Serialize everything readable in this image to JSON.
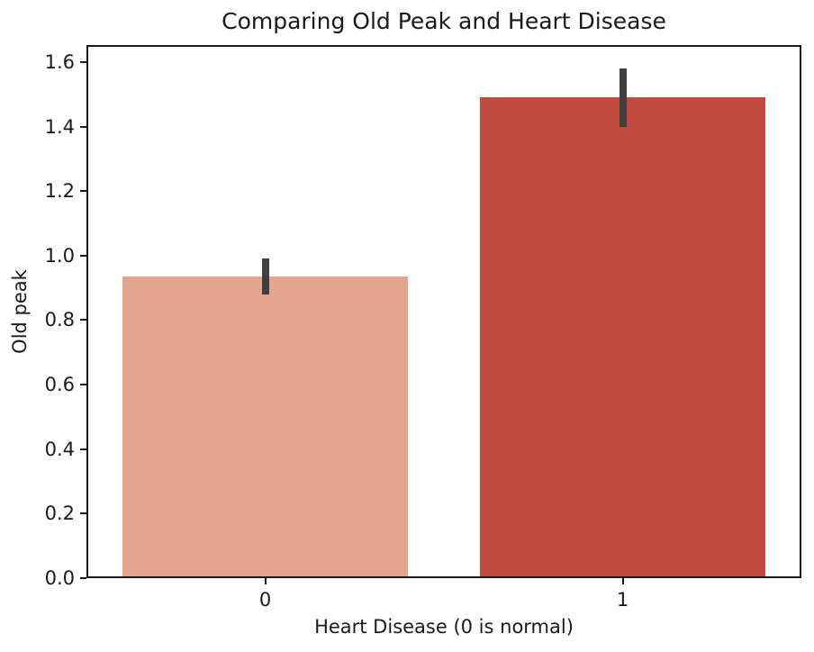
{
  "chart_data": {
    "type": "bar",
    "title": "Comparing Old Peak and Heart Disease",
    "xlabel": "Heart Disease (0 is normal)",
    "ylabel": "Old peak",
    "categories": [
      "0",
      "1"
    ],
    "values": [
      0.935,
      1.49
    ],
    "error_bars": [
      {
        "low": 0.88,
        "high": 0.99
      },
      {
        "low": 1.4,
        "high": 1.58
      }
    ],
    "bar_colors": [
      "#e3a58f",
      "#c04c41"
    ],
    "errorbar_color": "#3f3f3f",
    "ylim": [
      0,
      1.653
    ],
    "ytick_labels": [
      "0.0",
      "0.2",
      "0.4",
      "0.6",
      "0.8",
      "1.0",
      "1.2",
      "1.4",
      "1.6"
    ],
    "bar_width_fraction": 0.8,
    "grid": false,
    "legend": null,
    "spine_color": "#1a1a1a",
    "background_color": "#ffffff"
  }
}
